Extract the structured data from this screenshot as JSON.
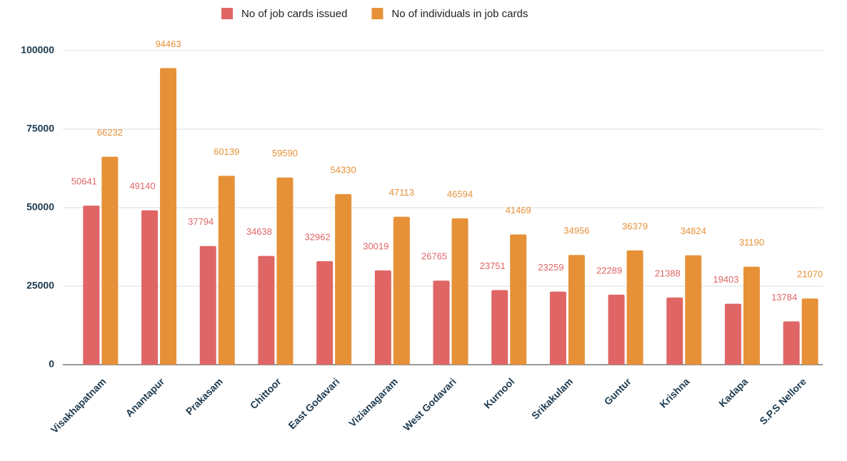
{
  "chart_data": {
    "type": "bar",
    "categories": [
      "Visakhapatnam",
      "Anantapur",
      "Prakasam",
      "Chittoor",
      "East Godavari",
      "Vizianagaram",
      "West Godavari",
      "Kurnool",
      "Srikakulam",
      "Guntur",
      "Krishna",
      "Kadapa",
      "S.P.S Nellore"
    ],
    "series": [
      {
        "name": "No of job cards issued",
        "color": "#e06666",
        "values": [
          50641,
          49140,
          37794,
          34638,
          32962,
          30019,
          26765,
          23751,
          23259,
          22289,
          21388,
          19403,
          13784
        ]
      },
      {
        "name": "No of individuals in job cards",
        "color": "#e69138",
        "values": [
          66232,
          94463,
          60139,
          59590,
          54330,
          47113,
          46594,
          41469,
          34956,
          36379,
          34824,
          31190,
          21070
        ]
      }
    ],
    "ylim": [
      0,
      100000
    ],
    "yticks": [
      0,
      25000,
      50000,
      75000,
      100000
    ],
    "grid": true,
    "legend": "top"
  }
}
